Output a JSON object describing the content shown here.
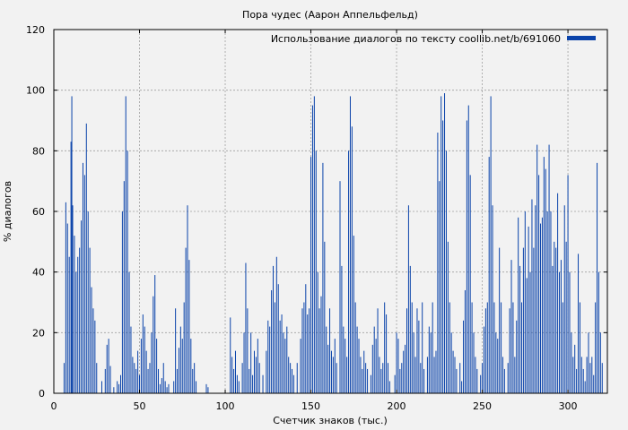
{
  "chart_data": {
    "type": "bar",
    "title": "Пора чудес (Аарон Аппельфельд)",
    "xlabel": "Счетчик знаков (тыс.)",
    "ylabel": "% диалогов",
    "legend": {
      "label": "Использование диалогов по тексту coollib.net/b/691060",
      "position": "top-right"
    },
    "xlim": [
      0,
      323
    ],
    "ylim": [
      0,
      120
    ],
    "xticks": [
      0,
      50,
      100,
      150,
      200,
      250,
      300
    ],
    "yticks": [
      0,
      20,
      40,
      60,
      80,
      100,
      120
    ],
    "grid": true,
    "bar_color": "#0a43aa",
    "bar_width": 0.5,
    "bars": [
      [
        6,
        10
      ],
      [
        7,
        63
      ],
      [
        8,
        56
      ],
      [
        9,
        45
      ],
      [
        10,
        83
      ],
      [
        10.5,
        98
      ],
      [
        11,
        62
      ],
      [
        12,
        52
      ],
      [
        13,
        40
      ],
      [
        14,
        45
      ],
      [
        15,
        48
      ],
      [
        16,
        57
      ],
      [
        17,
        76
      ],
      [
        18,
        72
      ],
      [
        19,
        89
      ],
      [
        20,
        60
      ],
      [
        21,
        48
      ],
      [
        22,
        35
      ],
      [
        23,
        28
      ],
      [
        24,
        24
      ],
      [
        25,
        10
      ],
      [
        28,
        4
      ],
      [
        30,
        8
      ],
      [
        31,
        16
      ],
      [
        32,
        18
      ],
      [
        33,
        9
      ],
      [
        35,
        2
      ],
      [
        37,
        4
      ],
      [
        38,
        3
      ],
      [
        39,
        6
      ],
      [
        40,
        60
      ],
      [
        41,
        70
      ],
      [
        42,
        98
      ],
      [
        43,
        80
      ],
      [
        44,
        40
      ],
      [
        45,
        22
      ],
      [
        46,
        12
      ],
      [
        47,
        10
      ],
      [
        48,
        8
      ],
      [
        49,
        14
      ],
      [
        50,
        6
      ],
      [
        51,
        18
      ],
      [
        52,
        26
      ],
      [
        53,
        22
      ],
      [
        54,
        14
      ],
      [
        55,
        8
      ],
      [
        56,
        10
      ],
      [
        57,
        20
      ],
      [
        58,
        32
      ],
      [
        59,
        39
      ],
      [
        60,
        18
      ],
      [
        61,
        8
      ],
      [
        62,
        3
      ],
      [
        63,
        5
      ],
      [
        64,
        10
      ],
      [
        65,
        4
      ],
      [
        66,
        2
      ],
      [
        67,
        3
      ],
      [
        70,
        4
      ],
      [
        71,
        28
      ],
      [
        72,
        8
      ],
      [
        73,
        15
      ],
      [
        74,
        22
      ],
      [
        75,
        18
      ],
      [
        76,
        30
      ],
      [
        77,
        48
      ],
      [
        78,
        62
      ],
      [
        79,
        44
      ],
      [
        80,
        18
      ],
      [
        81,
        8
      ],
      [
        82,
        10
      ],
      [
        83,
        4
      ],
      [
        89,
        3
      ],
      [
        90,
        2
      ],
      [
        103,
        25
      ],
      [
        104,
        12
      ],
      [
        105,
        8
      ],
      [
        106,
        14
      ],
      [
        107,
        6
      ],
      [
        108,
        4
      ],
      [
        110,
        10
      ],
      [
        111,
        20
      ],
      [
        112,
        43
      ],
      [
        113,
        28
      ],
      [
        114,
        8
      ],
      [
        115,
        20
      ],
      [
        116,
        6
      ],
      [
        117,
        14
      ],
      [
        118,
        12
      ],
      [
        119,
        18
      ],
      [
        120,
        10
      ],
      [
        122,
        6
      ],
      [
        124,
        14
      ],
      [
        125,
        24
      ],
      [
        126,
        22
      ],
      [
        127,
        34
      ],
      [
        128,
        42
      ],
      [
        129,
        30
      ],
      [
        130,
        45
      ],
      [
        131,
        36
      ],
      [
        132,
        24
      ],
      [
        133,
        26
      ],
      [
        134,
        20
      ],
      [
        135,
        18
      ],
      [
        136,
        22
      ],
      [
        137,
        12
      ],
      [
        138,
        10
      ],
      [
        139,
        8
      ],
      [
        140,
        6
      ],
      [
        142,
        10
      ],
      [
        144,
        18
      ],
      [
        145,
        28
      ],
      [
        146,
        30
      ],
      [
        147,
        36
      ],
      [
        148,
        26
      ],
      [
        149,
        28
      ],
      [
        150,
        78
      ],
      [
        151,
        95
      ],
      [
        152,
        98
      ],
      [
        153,
        80
      ],
      [
        154,
        40
      ],
      [
        155,
        28
      ],
      [
        156,
        32
      ],
      [
        157,
        76
      ],
      [
        158,
        50
      ],
      [
        159,
        22
      ],
      [
        160,
        16
      ],
      [
        161,
        28
      ],
      [
        162,
        14
      ],
      [
        163,
        12
      ],
      [
        164,
        18
      ],
      [
        165,
        10
      ],
      [
        167,
        70
      ],
      [
        168,
        42
      ],
      [
        169,
        22
      ],
      [
        170,
        18
      ],
      [
        171,
        12
      ],
      [
        172,
        80
      ],
      [
        173,
        98
      ],
      [
        174,
        88
      ],
      [
        175,
        52
      ],
      [
        176,
        30
      ],
      [
        177,
        22
      ],
      [
        178,
        18
      ],
      [
        179,
        12
      ],
      [
        180,
        8
      ],
      [
        181,
        14
      ],
      [
        182,
        10
      ],
      [
        183,
        8
      ],
      [
        185,
        6
      ],
      [
        186,
        16
      ],
      [
        187,
        22
      ],
      [
        188,
        18
      ],
      [
        189,
        28
      ],
      [
        190,
        12
      ],
      [
        191,
        8
      ],
      [
        192,
        10
      ],
      [
        193,
        30
      ],
      [
        194,
        26
      ],
      [
        195,
        10
      ],
      [
        196,
        4
      ],
      [
        199,
        6
      ],
      [
        200,
        20
      ],
      [
        201,
        18
      ],
      [
        202,
        8
      ],
      [
        203,
        10
      ],
      [
        204,
        14
      ],
      [
        205,
        16
      ],
      [
        206,
        28
      ],
      [
        207,
        62
      ],
      [
        208,
        42
      ],
      [
        209,
        30
      ],
      [
        210,
        20
      ],
      [
        211,
        12
      ],
      [
        212,
        28
      ],
      [
        213,
        24
      ],
      [
        214,
        10
      ],
      [
        215,
        30
      ],
      [
        216,
        8
      ],
      [
        218,
        12
      ],
      [
        219,
        22
      ],
      [
        220,
        20
      ],
      [
        221,
        30
      ],
      [
        222,
        12
      ],
      [
        223,
        14
      ],
      [
        224,
        86
      ],
      [
        225,
        70
      ],
      [
        226,
        98
      ],
      [
        227,
        90
      ],
      [
        228,
        99
      ],
      [
        229,
        80
      ],
      [
        230,
        50
      ],
      [
        231,
        30
      ],
      [
        232,
        20
      ],
      [
        233,
        14
      ],
      [
        234,
        12
      ],
      [
        235,
        8
      ],
      [
        237,
        10
      ],
      [
        238,
        4
      ],
      [
        239,
        24
      ],
      [
        240,
        34
      ],
      [
        241,
        90
      ],
      [
        242,
        95
      ],
      [
        243,
        72
      ],
      [
        244,
        30
      ],
      [
        245,
        20
      ],
      [
        246,
        12
      ],
      [
        247,
        8
      ],
      [
        249,
        6
      ],
      [
        250,
        10
      ],
      [
        251,
        22
      ],
      [
        252,
        28
      ],
      [
        253,
        30
      ],
      [
        254,
        78
      ],
      [
        255,
        98
      ],
      [
        256,
        62
      ],
      [
        257,
        30
      ],
      [
        258,
        20
      ],
      [
        259,
        18
      ],
      [
        260,
        48
      ],
      [
        261,
        30
      ],
      [
        262,
        12
      ],
      [
        263,
        8
      ],
      [
        265,
        10
      ],
      [
        266,
        28
      ],
      [
        267,
        44
      ],
      [
        268,
        30
      ],
      [
        269,
        12
      ],
      [
        270,
        24
      ],
      [
        271,
        58
      ],
      [
        272,
        42
      ],
      [
        273,
        30
      ],
      [
        274,
        48
      ],
      [
        275,
        60
      ],
      [
        276,
        38
      ],
      [
        277,
        55
      ],
      [
        278,
        40
      ],
      [
        279,
        64
      ],
      [
        280,
        48
      ],
      [
        281,
        62
      ],
      [
        282,
        82
      ],
      [
        283,
        72
      ],
      [
        284,
        56
      ],
      [
        285,
        58
      ],
      [
        286,
        78
      ],
      [
        287,
        74
      ],
      [
        288,
        60
      ],
      [
        289,
        82
      ],
      [
        290,
        60
      ],
      [
        291,
        42
      ],
      [
        292,
        50
      ],
      [
        293,
        48
      ],
      [
        294,
        66
      ],
      [
        295,
        40
      ],
      [
        296,
        44
      ],
      [
        297,
        30
      ],
      [
        298,
        62
      ],
      [
        299,
        50
      ],
      [
        300,
        72
      ],
      [
        301,
        40
      ],
      [
        302,
        20
      ],
      [
        303,
        12
      ],
      [
        304,
        16
      ],
      [
        305,
        8
      ],
      [
        306,
        46
      ],
      [
        307,
        30
      ],
      [
        308,
        12
      ],
      [
        309,
        8
      ],
      [
        310,
        4
      ],
      [
        311,
        12
      ],
      [
        312,
        20
      ],
      [
        313,
        10
      ],
      [
        314,
        12
      ],
      [
        315,
        6
      ],
      [
        316,
        30
      ],
      [
        317,
        76
      ],
      [
        318,
        40
      ],
      [
        319,
        20
      ],
      [
        320,
        10
      ]
    ]
  }
}
